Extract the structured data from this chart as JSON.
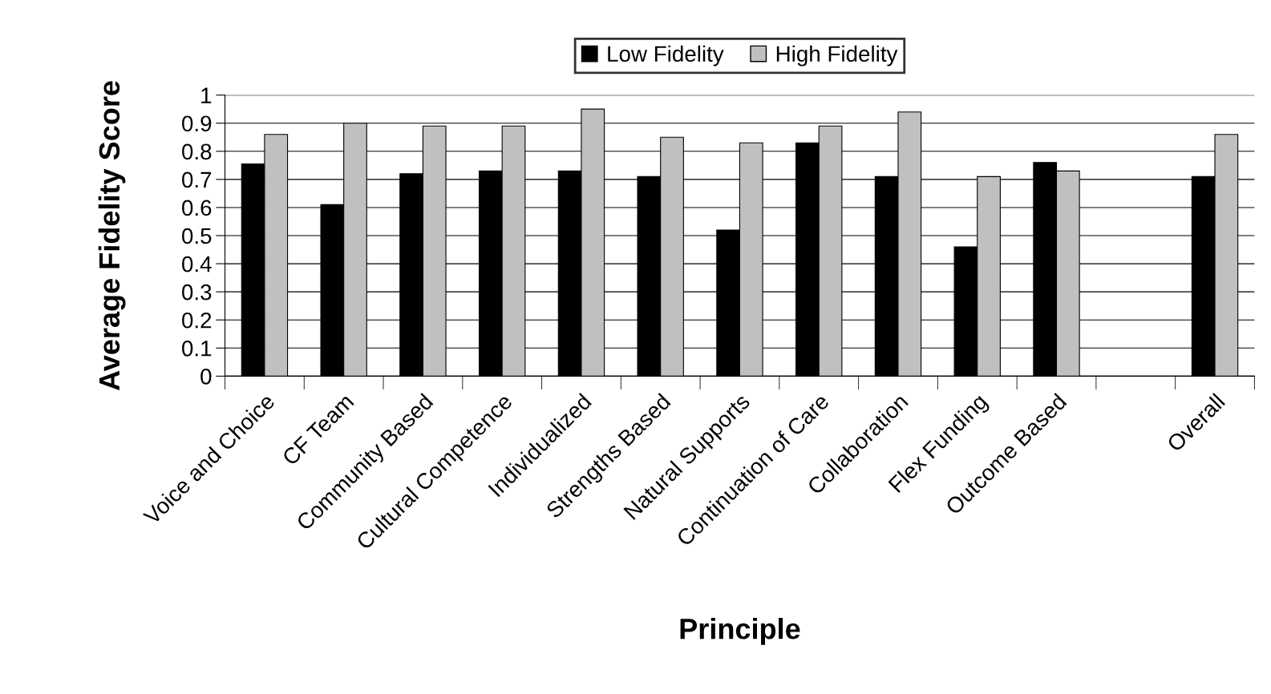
{
  "chart_data": {
    "type": "bar",
    "xlabel": "Principle",
    "ylabel": "Average Fidelity Score",
    "categories": [
      "Voice and Choice",
      "CF Team",
      "Community Based",
      "Cultural Competence",
      "Individualized",
      "Strengths Based",
      "Natural Supports",
      "Continuation of Care",
      "Collaboration",
      "Flex Funding",
      "Outcome Based",
      null,
      "Overall"
    ],
    "series": [
      {
        "name": "Low Fidelity",
        "color": "#000000",
        "values": [
          0.755,
          0.61,
          0.72,
          0.73,
          0.73,
          0.71,
          0.52,
          0.83,
          0.71,
          0.46,
          0.76,
          null,
          0.71
        ]
      },
      {
        "name": "High Fidelity",
        "color": "#c0c0c0",
        "values": [
          0.86,
          0.9,
          0.89,
          0.89,
          0.95,
          0.85,
          0.83,
          0.89,
          0.94,
          0.71,
          0.73,
          null,
          0.86
        ]
      }
    ],
    "ylim": [
      0,
      1
    ],
    "yticks": [
      0,
      0.1,
      0.2,
      0.3,
      0.4,
      0.5,
      0.6,
      0.7,
      0.8,
      0.9,
      1
    ],
    "grid": "y",
    "legend": "top"
  }
}
